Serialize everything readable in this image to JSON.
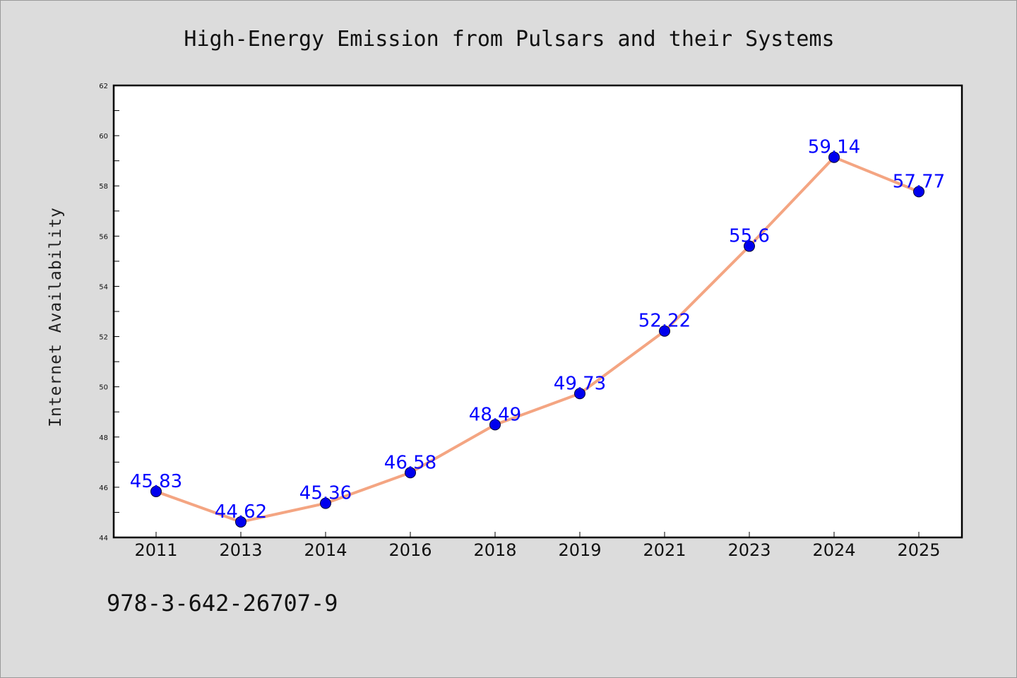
{
  "chart_data": {
    "type": "line",
    "title": "High-Energy Emission from Pulsars and their Systems",
    "xlabel": "",
    "ylabel": "Internet Availability",
    "categories": [
      "2011",
      "2013",
      "2014",
      "2016",
      "2018",
      "2019",
      "2021",
      "2023",
      "2024",
      "2025"
    ],
    "series": [
      {
        "values": [
          45.83,
          44.62,
          45.36,
          46.58,
          48.49,
          49.73,
          52.22,
          55.6,
          59.14,
          57.77
        ],
        "labels": [
          "45.83",
          "44.62",
          "45.36",
          "46.58",
          "48.49",
          "49.73",
          "52.22",
          "55.6",
          "59.14",
          "57.77"
        ]
      }
    ],
    "ylim": [
      44,
      62
    ],
    "yticks": [
      "44",
      "46",
      "48",
      "50",
      "52",
      "54",
      "56",
      "58",
      "60",
      "62"
    ],
    "grid": false,
    "legend": "none",
    "line_color": "#f4a582",
    "marker_color": "#0000ee",
    "label_color": "#0000ff",
    "plot_background": "#ffffff",
    "page_background": "#dcdcdc"
  },
  "footer": {
    "isbn": "978-3-642-26707-9"
  }
}
